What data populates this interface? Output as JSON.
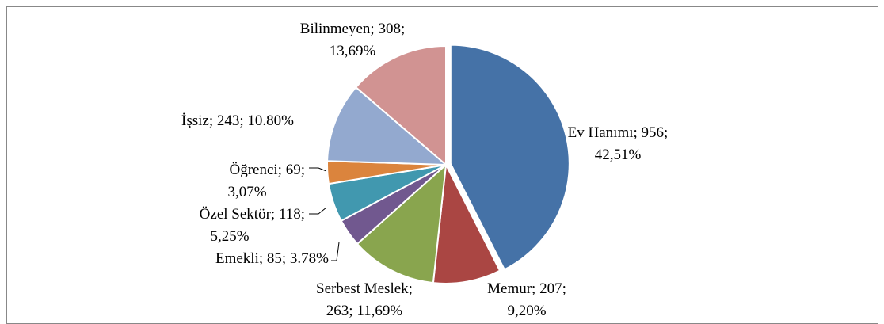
{
  "chart_data": {
    "type": "pie",
    "values": [
      956,
      207,
      263,
      85,
      118,
      69,
      243,
      308
    ],
    "value_labels": [
      [
        "Ev Hanımı; 956;",
        "42,51%"
      ],
      [
        "Memur; 207;",
        "9,20%"
      ],
      [
        "Serbest Meslek;",
        "263; 11,69%"
      ],
      [
        "Emekli; 85; 3.78%"
      ],
      [
        "Özel Sektör; 118;",
        "5,25%"
      ],
      [
        "Öğrenci; 69;",
        "3,07%"
      ],
      [
        "İşsiz; 243; 10.80%"
      ],
      [
        "Bilinmeyen; 308;",
        "13,69%"
      ]
    ],
    "colors": [
      "#4572a7",
      "#aa4643",
      "#89a54e",
      "#71588f",
      "#4198af",
      "#db843d",
      "#93a9cf",
      "#d19392"
    ]
  }
}
